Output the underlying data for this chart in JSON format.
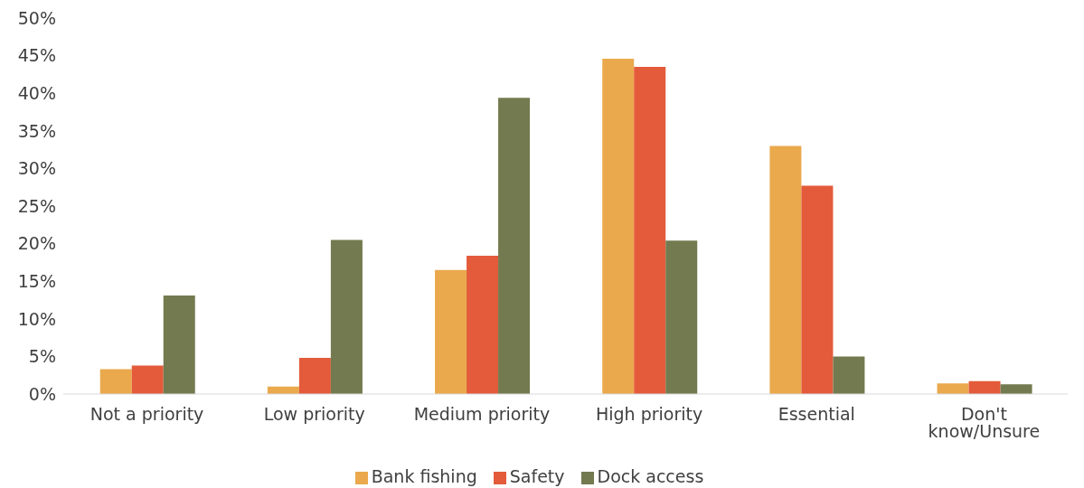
{
  "chart_data": {
    "type": "bar",
    "categories": [
      "Not a priority",
      "Low priority",
      "Medium priority",
      "High priority",
      "Essential",
      "Don't know/Unsure"
    ],
    "series": [
      {
        "name": "Bank fishing",
        "color": "#eaa94d",
        "values": [
          3.3,
          1.0,
          16.5,
          44.6,
          33.0,
          1.4
        ]
      },
      {
        "name": "Safety",
        "color": "#e35b3a",
        "values": [
          3.8,
          4.8,
          18.4,
          43.5,
          27.7,
          1.7
        ]
      },
      {
        "name": "Dock access",
        "color": "#737a4f",
        "values": [
          13.1,
          20.5,
          39.4,
          20.4,
          5.0,
          1.3
        ]
      }
    ],
    "ylim": [
      0,
      50
    ],
    "yticks": [
      {
        "value": 0,
        "label": "0%"
      },
      {
        "value": 5,
        "label": "5%"
      },
      {
        "value": 10,
        "label": "10%"
      },
      {
        "value": 15,
        "label": "15%"
      },
      {
        "value": 20,
        "label": "20%"
      },
      {
        "value": 25,
        "label": "25%"
      },
      {
        "value": 30,
        "label": "30%"
      },
      {
        "value": 35,
        "label": "35%"
      },
      {
        "value": 40,
        "label": "40%"
      },
      {
        "value": 45,
        "label": "45%"
      },
      {
        "value": 50,
        "label": "50%"
      }
    ],
    "grid": false,
    "legend": "bottom"
  }
}
